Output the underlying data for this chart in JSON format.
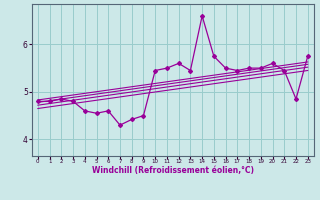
{
  "xlabel": "Windchill (Refroidissement éolien,°C)",
  "bg_color": "#cce8e8",
  "grid_color": "#99cccc",
  "line_color": "#990099",
  "x_ticks": [
    0,
    1,
    2,
    3,
    4,
    5,
    6,
    7,
    8,
    9,
    10,
    11,
    12,
    13,
    14,
    15,
    16,
    17,
    18,
    19,
    20,
    21,
    22,
    23
  ],
  "y_ticks": [
    4,
    5,
    6
  ],
  "xlim": [
    -0.5,
    23.5
  ],
  "ylim": [
    3.65,
    6.85
  ],
  "main_data_x": [
    0,
    1,
    2,
    3,
    4,
    5,
    6,
    7,
    8,
    9,
    10,
    11,
    12,
    13,
    14,
    15,
    16,
    17,
    18,
    19,
    20,
    21,
    22,
    23
  ],
  "main_data_y": [
    4.8,
    4.8,
    4.85,
    4.8,
    4.6,
    4.55,
    4.6,
    4.3,
    4.42,
    4.5,
    5.45,
    5.5,
    5.6,
    5.45,
    6.6,
    5.75,
    5.5,
    5.45,
    5.5,
    5.5,
    5.6,
    5.45,
    4.85,
    5.75
  ],
  "reg_lines": [
    [
      4.65,
      5.45
    ],
    [
      4.72,
      5.52
    ],
    [
      4.78,
      5.58
    ],
    [
      4.83,
      5.63
    ]
  ]
}
